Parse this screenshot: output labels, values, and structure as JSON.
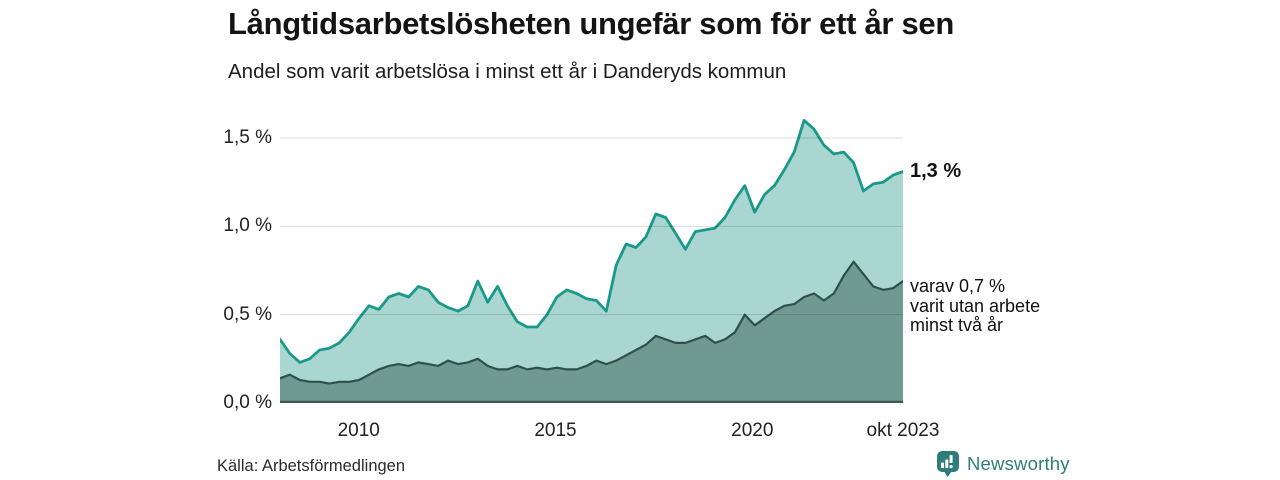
{
  "header": {
    "title": "Långtidsarbetslösheten ungefär som för ett år sen",
    "subtitle": "Andel som varit arbetslösa i minst ett år i Danderyds kommun"
  },
  "chart_data": {
    "type": "area",
    "title": "Långtidsarbetslösheten ungefär som för ett år sen",
    "subtitle": "Andel som varit arbetslösa i minst ett år i Danderyds kommun",
    "x_start": 2008.0,
    "x_end": 2023.83,
    "x_tick_labels": [
      "2010",
      "2015",
      "2020",
      "okt 2023"
    ],
    "x_tick_positions": [
      2010,
      2015,
      2020,
      2023.83
    ],
    "y_tick_labels": [
      "0,0 %",
      "0,5 %",
      "1,0 %",
      "1,5 %"
    ],
    "y_tick_values": [
      0,
      0.5,
      1.0,
      1.5
    ],
    "ylim": [
      0,
      1.64
    ],
    "grid": "horizontal",
    "unit": "%",
    "series": [
      {
        "id": "unemployed_min_one_year",
        "end_label": "1,3 %",
        "end_value": 1.31,
        "line_color": "#1a998a",
        "fill_color": "#a9d6d0",
        "values": [
          0.36,
          0.28,
          0.23,
          0.25,
          0.3,
          0.31,
          0.34,
          0.4,
          0.48,
          0.55,
          0.53,
          0.6,
          0.62,
          0.6,
          0.66,
          0.64,
          0.57,
          0.54,
          0.52,
          0.55,
          0.69,
          0.57,
          0.66,
          0.55,
          0.46,
          0.43,
          0.43,
          0.5,
          0.6,
          0.64,
          0.62,
          0.59,
          0.58,
          0.52,
          0.78,
          0.9,
          0.88,
          0.94,
          1.07,
          1.05,
          0.96,
          0.87,
          0.97,
          0.98,
          0.99,
          1.05,
          1.15,
          1.23,
          1.08,
          1.18,
          1.23,
          1.32,
          1.42,
          1.6,
          1.55,
          1.46,
          1.41,
          1.42,
          1.36,
          1.2,
          1.24,
          1.25,
          1.29,
          1.31
        ]
      },
      {
        "id": "unemployed_min_two_years",
        "end_label": "varav 0,7 % varit utan arbete minst två år",
        "end_value": 0.69,
        "line_color": "#2e5049",
        "fill_color": "#6f9a92",
        "values": [
          0.14,
          0.16,
          0.13,
          0.12,
          0.12,
          0.11,
          0.12,
          0.12,
          0.13,
          0.16,
          0.19,
          0.21,
          0.22,
          0.21,
          0.23,
          0.22,
          0.21,
          0.24,
          0.22,
          0.23,
          0.25,
          0.21,
          0.19,
          0.19,
          0.21,
          0.19,
          0.2,
          0.19,
          0.2,
          0.19,
          0.19,
          0.21,
          0.24,
          0.22,
          0.24,
          0.27,
          0.3,
          0.33,
          0.38,
          0.36,
          0.34,
          0.34,
          0.36,
          0.38,
          0.34,
          0.36,
          0.4,
          0.5,
          0.44,
          0.48,
          0.52,
          0.55,
          0.56,
          0.6,
          0.62,
          0.58,
          0.62,
          0.72,
          0.8,
          0.73,
          0.66,
          0.64,
          0.65,
          0.69
        ]
      }
    ]
  },
  "annotations": {
    "total_value_label": "1,3 %",
    "subset_line1": "varav 0,7 %",
    "subset_line2": "varit utan arbete",
    "subset_line3": "minst två år"
  },
  "source": {
    "text": "Källa: Arbetsförmedlingen"
  },
  "branding": {
    "name": "Newsworthy",
    "icon": "newsworthy-bubble-chart-icon",
    "color": "#2f7d7a"
  },
  "colors": {
    "baseline": "#3c5851",
    "gridline_overlay": "rgba(0,0,0,0.14)",
    "background": "#ffffff"
  }
}
